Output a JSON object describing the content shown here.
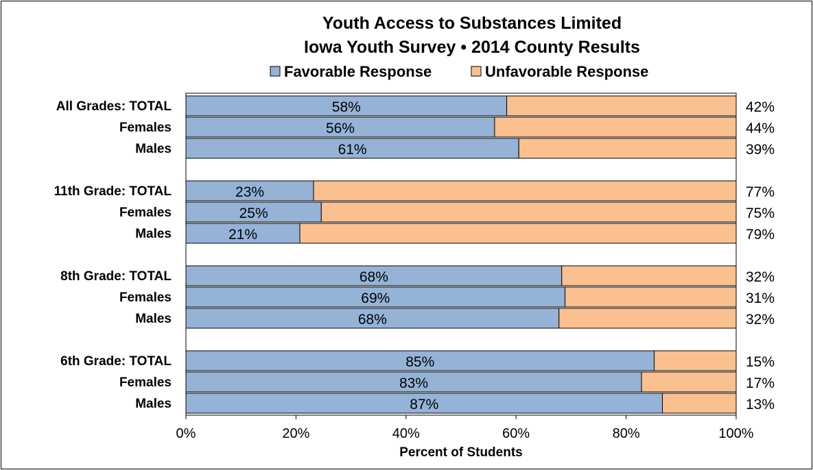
{
  "chart_data": {
    "type": "bar",
    "orientation": "horizontal",
    "stacked": true,
    "title": "Youth Access to Substances Limited",
    "subtitle": "Iowa Youth Survey • 2014 County Results",
    "xlabel": "Percent of Students",
    "ylabel": "",
    "xlim": [
      0,
      100
    ],
    "x_ticks": [
      "0%",
      "20%",
      "40%",
      "60%",
      "80%",
      "100%"
    ],
    "legend_position": "top",
    "categories": [
      "All Grades:  TOTAL",
      "Females",
      "Males",
      "11th Grade:  TOTAL",
      "Females",
      "Males",
      "8th Grade:  TOTAL",
      "Females",
      "Males",
      "6th Grade:  TOTAL",
      "Females",
      "Males"
    ],
    "groups": [
      3,
      3,
      3,
      3
    ],
    "series": [
      {
        "name": "Favorable Response",
        "color": "#95b3d7",
        "values": [
          58.3,
          56.1,
          60.5,
          23.2,
          24.6,
          20.7,
          68.3,
          68.9,
          67.8,
          85.1,
          82.8,
          86.6
        ],
        "labels": [
          "58%",
          "56%",
          "61%",
          "23%",
          "25%",
          "21%",
          "68%",
          "69%",
          "68%",
          "85%",
          "83%",
          "87%"
        ]
      },
      {
        "name": "Unfavorable Response",
        "color": "#fac090",
        "values": [
          41.7,
          43.9,
          39.5,
          76.8,
          75.4,
          79.3,
          31.7,
          31.1,
          32.2,
          14.9,
          17.2,
          13.4
        ],
        "labels": [
          "42%",
          "44%",
          "39%",
          "77%",
          "75%",
          "79%",
          "32%",
          "31%",
          "32%",
          "15%",
          "17%",
          "13%"
        ]
      }
    ]
  }
}
